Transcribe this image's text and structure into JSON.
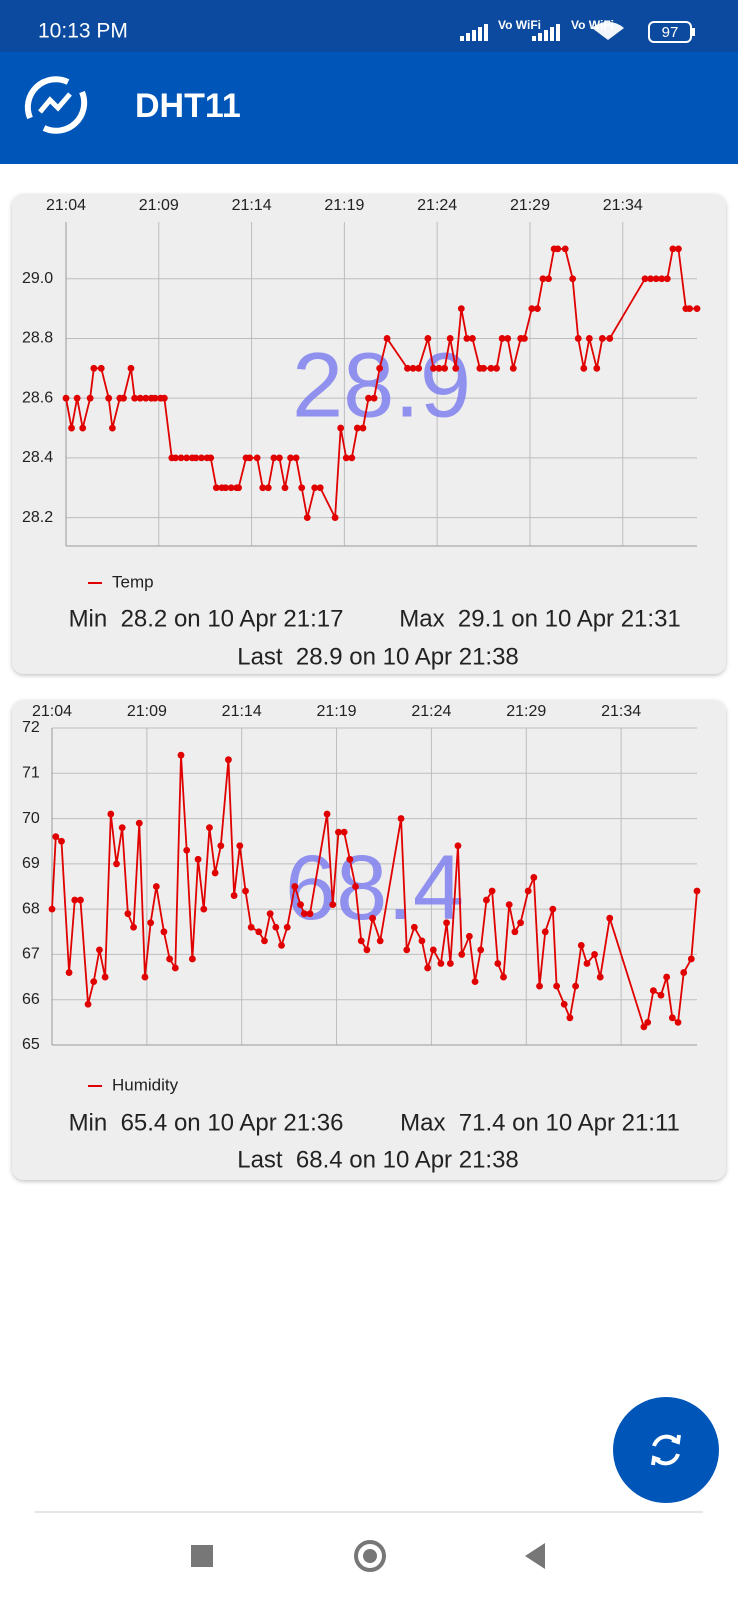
{
  "status_bar": {
    "time": "10:13 PM",
    "network_labels": [
      "Vo WiFi",
      "Vo WiFi"
    ],
    "battery": "97"
  },
  "app_bar": {
    "title": "DHT11"
  },
  "chart_data": [
    {
      "type": "line",
      "overlay": "28.9",
      "x": [
        1264.0,
        1264.3,
        1264.6,
        1264.9,
        1265.3,
        1265.5,
        1265.9,
        1266.3,
        1266.5,
        1266.9,
        1267.1,
        1267.5,
        1267.7,
        1268.0,
        1268.3,
        1268.6,
        1268.8,
        1269.1,
        1269.3,
        1269.7,
        1269.9,
        1270.2,
        1270.5,
        1270.8,
        1271.0,
        1271.3,
        1271.6,
        1271.8,
        1272.1,
        1272.4,
        1272.6,
        1272.9,
        1273.2,
        1273.3,
        1273.7,
        1273.9,
        1274.3,
        1274.6,
        1274.9,
        1275.2,
        1275.5,
        1275.8,
        1276.1,
        1276.4,
        1276.7,
        1277.0,
        1277.4,
        1277.7,
        1278.5,
        1278.8,
        1279.1,
        1279.4,
        1279.7,
        1280.0,
        1280.3,
        1280.6,
        1280.9,
        1281.3,
        1282.4,
        1282.7,
        1283.0,
        1283.5,
        1283.8,
        1284.1,
        1284.4,
        1284.7,
        1285.0,
        1285.3,
        1285.6,
        1285.9,
        1286.3,
        1286.5,
        1286.9,
        1287.2,
        1287.5,
        1287.8,
        1288.1,
        1288.5,
        1288.7,
        1289.1,
        1289.4,
        1289.7,
        1290.0,
        1290.3,
        1290.5,
        1290.9,
        1291.3,
        1291.6,
        1291.9,
        1292.2,
        1292.6,
        1292.9,
        1293.3,
        1295.2,
        1295.5,
        1295.8,
        1296.1,
        1296.4,
        1296.7,
        1297.0,
        1297.4,
        1297.6,
        1298.0
      ],
      "series": [
        {
          "name": "Temp",
          "color": "#e00000",
          "values": [
            28.6,
            28.5,
            28.6,
            28.5,
            28.6,
            28.7,
            28.7,
            28.6,
            28.5,
            28.6,
            28.6,
            28.7,
            28.6,
            28.6,
            28.6,
            28.6,
            28.6,
            28.6,
            28.6,
            28.4,
            28.4,
            28.4,
            28.4,
            28.4,
            28.4,
            28.4,
            28.4,
            28.4,
            28.3,
            28.3,
            28.3,
            28.3,
            28.3,
            28.3,
            28.4,
            28.4,
            28.4,
            28.3,
            28.3,
            28.4,
            28.4,
            28.3,
            28.4,
            28.4,
            28.3,
            28.2,
            28.3,
            28.3,
            28.2,
            28.5,
            28.4,
            28.4,
            28.5,
            28.5,
            28.6,
            28.6,
            28.7,
            28.8,
            28.7,
            28.7,
            28.7,
            28.8,
            28.7,
            28.7,
            28.7,
            28.8,
            28.7,
            28.9,
            28.8,
            28.8,
            28.7,
            28.7,
            28.7,
            28.7,
            28.8,
            28.8,
            28.7,
            28.8,
            28.8,
            28.9,
            28.9,
            29.0,
            29.0,
            29.1,
            29.1,
            29.1,
            29.0,
            28.8,
            28.7,
            28.8,
            28.7,
            28.8,
            28.8,
            29.0,
            29.0,
            29.0,
            29.0,
            29.0,
            29.1,
            29.1,
            28.9,
            28.9,
            28.9
          ]
        }
      ],
      "xlim": [
        1264,
        1298
      ],
      "xticks": [
        {
          "value": 1264,
          "label": "21:04"
        },
        {
          "value": 1269,
          "label": "21:09"
        },
        {
          "value": 1274,
          "label": "21:14"
        },
        {
          "value": 1279,
          "label": "21:19"
        },
        {
          "value": 1284,
          "label": "21:24"
        },
        {
          "value": 1289,
          "label": "21:29"
        },
        {
          "value": 1294,
          "label": "21:34"
        }
      ],
      "ylim": [
        28.105,
        29.19
      ],
      "yticks": [
        28.2,
        28.4,
        28.6,
        28.8,
        {
          "value": 29,
          "label": "29.0"
        }
      ],
      "grid": true,
      "legend": "bottom-left",
      "stats": [
        "Min  28.2 on 10 Apr 21:17",
        "Max  29.1 on 10 Apr 21:31",
        "Last  28.9 on 10 Apr 21:38"
      ]
    },
    {
      "type": "line",
      "overlay": "68.4",
      "x": [
        1264.0,
        1264.2,
        1264.5,
        1264.9,
        1265.2,
        1265.5,
        1265.9,
        1266.2,
        1266.5,
        1266.8,
        1267.1,
        1267.4,
        1267.7,
        1268.0,
        1268.3,
        1268.6,
        1268.9,
        1269.2,
        1269.5,
        1269.9,
        1270.2,
        1270.5,
        1270.8,
        1271.1,
        1271.4,
        1271.7,
        1272.0,
        1272.3,
        1272.6,
        1272.9,
        1273.3,
        1273.6,
        1273.9,
        1274.2,
        1274.5,
        1274.9,
        1275.2,
        1275.5,
        1275.8,
        1276.1,
        1276.4,
        1276.8,
        1277.1,
        1277.3,
        1277.6,
        1278.5,
        1278.8,
        1279.1,
        1279.4,
        1279.7,
        1280.0,
        1280.3,
        1280.6,
        1280.9,
        1281.3,
        1282.4,
        1282.7,
        1283.1,
        1283.5,
        1283.8,
        1284.1,
        1284.5,
        1284.8,
        1285.0,
        1285.4,
        1285.6,
        1286.0,
        1286.3,
        1286.6,
        1286.9,
        1287.2,
        1287.5,
        1287.8,
        1288.1,
        1288.4,
        1288.7,
        1289.1,
        1289.4,
        1289.7,
        1290.0,
        1290.4,
        1290.6,
        1291.0,
        1291.3,
        1291.6,
        1291.9,
        1292.2,
        1292.6,
        1292.9,
        1293.4,
        1295.2,
        1295.4,
        1295.7,
        1296.1,
        1296.4,
        1296.7,
        1297.0,
        1297.3,
        1297.7,
        1298.0
      ],
      "series": [
        {
          "name": "Humidity",
          "color": "#e00000",
          "values": [
            68.0,
            69.6,
            69.5,
            66.6,
            68.2,
            68.2,
            65.9,
            66.4,
            67.1,
            66.5,
            70.1,
            69.0,
            69.8,
            67.9,
            67.6,
            69.9,
            66.5,
            67.7,
            68.5,
            67.5,
            66.9,
            66.7,
            71.4,
            69.3,
            66.9,
            69.1,
            68.0,
            69.8,
            68.8,
            69.4,
            71.3,
            68.3,
            69.4,
            68.4,
            67.6,
            67.5,
            67.3,
            67.9,
            67.6,
            67.2,
            67.6,
            68.5,
            68.1,
            67.9,
            67.9,
            70.1,
            68.1,
            69.7,
            69.7,
            69.1,
            68.5,
            67.3,
            67.1,
            67.8,
            67.3,
            70.0,
            67.1,
            67.6,
            67.3,
            66.7,
            67.1,
            66.8,
            67.7,
            66.8,
            69.4,
            67.0,
            67.4,
            66.4,
            67.1,
            68.2,
            68.4,
            66.8,
            66.5,
            68.1,
            67.5,
            67.7,
            68.4,
            68.7,
            66.3,
            67.5,
            68.0,
            66.3,
            65.9,
            65.6,
            66.3,
            67.2,
            66.8,
            67.0,
            66.5,
            67.8,
            65.4,
            65.5,
            66.2,
            66.1,
            66.5,
            65.6,
            65.5,
            66.6,
            66.9,
            68.4
          ]
        }
      ],
      "xlim": [
        1264,
        1298
      ],
      "xticks": [
        {
          "value": 1264,
          "label": "21:04"
        },
        {
          "value": 1269,
          "label": "21:09"
        },
        {
          "value": 1274,
          "label": "21:14"
        },
        {
          "value": 1279,
          "label": "21:19"
        },
        {
          "value": 1284,
          "label": "21:24"
        },
        {
          "value": 1289,
          "label": "21:29"
        },
        {
          "value": 1294,
          "label": "21:34"
        }
      ],
      "ylim": [
        65,
        72
      ],
      "yticks": [
        65,
        66,
        67,
        68,
        69,
        70,
        71,
        72
      ],
      "grid": true,
      "legend": "bottom-left",
      "stats": [
        "Min  65.4 on 10 Apr 21:36",
        "Max  71.4 on 10 Apr 21:11",
        "Last  68.4 on 10 Apr 21:38"
      ]
    }
  ]
}
